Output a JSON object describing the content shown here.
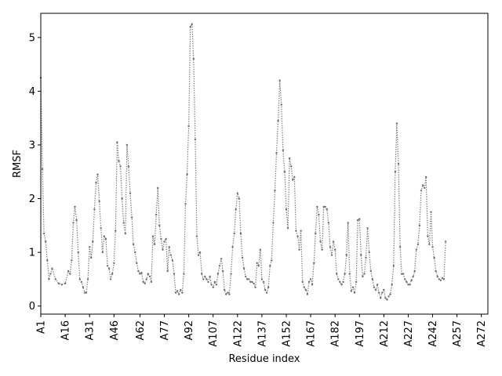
{
  "chart_data": {
    "type": "line",
    "title": "",
    "xlabel": "Residue index",
    "ylabel": "RMSF",
    "xlim": [
      1,
      276
    ],
    "ylim": [
      -0.15,
      5.45
    ],
    "grid": false,
    "legend": "none",
    "line_color": "#808080",
    "line_style": "dotted",
    "yticks": [
      0,
      1,
      2,
      3,
      4,
      5
    ],
    "ytick_labels": [
      "0",
      "1",
      "2",
      "3",
      "4",
      "5"
    ],
    "xticks": [
      1,
      16,
      31,
      46,
      62,
      77,
      92,
      107,
      122,
      137,
      152,
      167,
      182,
      197,
      212,
      227,
      242,
      257,
      272
    ],
    "xtick_labels": [
      "A1",
      "A16",
      "A31",
      "A46",
      "A62",
      "A77",
      "A92",
      "A107",
      "A122",
      "A137",
      "A152",
      "A167",
      "A182",
      "A197",
      "A212",
      "A227",
      "A242",
      "A257",
      "A272"
    ],
    "keypoints": [
      [
        1,
        4.25
      ],
      [
        2,
        2.55
      ],
      [
        3,
        1.35
      ],
      [
        4,
        1.2
      ],
      [
        5,
        0.85
      ],
      [
        6,
        0.5
      ],
      [
        7,
        0.6
      ],
      [
        8,
        0.7
      ],
      [
        10,
        0.5
      ],
      [
        12,
        0.42
      ],
      [
        14,
        0.4
      ],
      [
        16,
        0.42
      ],
      [
        18,
        0.65
      ],
      [
        19,
        0.6
      ],
      [
        20,
        0.85
      ],
      [
        21,
        1.55
      ],
      [
        22,
        1.85
      ],
      [
        23,
        1.6
      ],
      [
        24,
        1.0
      ],
      [
        25,
        0.5
      ],
      [
        26,
        0.45
      ],
      [
        27,
        0.35
      ],
      [
        28,
        0.25
      ],
      [
        29,
        0.25
      ],
      [
        30,
        0.5
      ],
      [
        31,
        1.1
      ],
      [
        32,
        0.9
      ],
      [
        33,
        1.2
      ],
      [
        34,
        1.8
      ],
      [
        35,
        2.3
      ],
      [
        36,
        2.45
      ],
      [
        37,
        1.95
      ],
      [
        38,
        1.45
      ],
      [
        39,
        1.0
      ],
      [
        40,
        1.3
      ],
      [
        41,
        1.25
      ],
      [
        42,
        0.75
      ],
      [
        43,
        0.7
      ],
      [
        44,
        0.5
      ],
      [
        45,
        0.6
      ],
      [
        46,
        0.8
      ],
      [
        47,
        1.4
      ],
      [
        48,
        3.05
      ],
      [
        49,
        2.7
      ],
      [
        50,
        2.6
      ],
      [
        51,
        2.0
      ],
      [
        52,
        1.55
      ],
      [
        53,
        1.35
      ],
      [
        54,
        3.0
      ],
      [
        55,
        2.6
      ],
      [
        56,
        2.1
      ],
      [
        57,
        1.65
      ],
      [
        58,
        1.15
      ],
      [
        59,
        1.0
      ],
      [
        60,
        0.8
      ],
      [
        61,
        0.65
      ],
      [
        62,
        0.6
      ],
      [
        63,
        0.62
      ],
      [
        64,
        0.45
      ],
      [
        65,
        0.42
      ],
      [
        66,
        0.5
      ],
      [
        67,
        0.6
      ],
      [
        68,
        0.55
      ],
      [
        69,
        0.45
      ],
      [
        70,
        1.3
      ],
      [
        71,
        1.15
      ],
      [
        72,
        1.7
      ],
      [
        73,
        2.2
      ],
      [
        74,
        1.5
      ],
      [
        75,
        1.25
      ],
      [
        76,
        1.05
      ],
      [
        77,
        1.2
      ],
      [
        78,
        1.25
      ],
      [
        79,
        0.65
      ],
      [
        80,
        1.1
      ],
      [
        81,
        0.95
      ],
      [
        82,
        0.85
      ],
      [
        83,
        0.6
      ],
      [
        84,
        0.25
      ],
      [
        85,
        0.28
      ],
      [
        86,
        0.22
      ],
      [
        87,
        0.3
      ],
      [
        88,
        0.25
      ],
      [
        89,
        0.6
      ],
      [
        90,
        1.9
      ],
      [
        91,
        2.45
      ],
      [
        92,
        3.35
      ],
      [
        93,
        5.2
      ],
      [
        94,
        5.25
      ],
      [
        95,
        4.6
      ],
      [
        96,
        3.1
      ],
      [
        97,
        1.3
      ],
      [
        98,
        0.95
      ],
      [
        99,
        1.0
      ],
      [
        100,
        0.6
      ],
      [
        101,
        0.5
      ],
      [
        102,
        0.55
      ],
      [
        103,
        0.5
      ],
      [
        104,
        0.45
      ],
      [
        105,
        0.55
      ],
      [
        106,
        0.4
      ],
      [
        107,
        0.35
      ],
      [
        108,
        0.45
      ],
      [
        109,
        0.4
      ],
      [
        110,
        0.6
      ],
      [
        111,
        0.75
      ],
      [
        112,
        0.88
      ],
      [
        113,
        0.65
      ],
      [
        114,
        0.3
      ],
      [
        115,
        0.22
      ],
      [
        116,
        0.25
      ],
      [
        117,
        0.22
      ],
      [
        118,
        0.6
      ],
      [
        119,
        1.1
      ],
      [
        120,
        1.35
      ],
      [
        121,
        1.8
      ],
      [
        122,
        2.1
      ],
      [
        123,
        2.0
      ],
      [
        124,
        1.35
      ],
      [
        125,
        0.9
      ],
      [
        126,
        0.7
      ],
      [
        127,
        0.55
      ],
      [
        128,
        0.5
      ],
      [
        129,
        0.5
      ],
      [
        130,
        0.45
      ],
      [
        131,
        0.45
      ],
      [
        132,
        0.42
      ],
      [
        133,
        0.35
      ],
      [
        134,
        0.8
      ],
      [
        135,
        0.75
      ],
      [
        136,
        1.05
      ],
      [
        137,
        0.5
      ],
      [
        138,
        0.45
      ],
      [
        139,
        0.3
      ],
      [
        140,
        0.25
      ],
      [
        141,
        0.35
      ],
      [
        142,
        0.75
      ],
      [
        143,
        0.85
      ],
      [
        144,
        1.55
      ],
      [
        145,
        2.15
      ],
      [
        146,
        2.85
      ],
      [
        147,
        3.45
      ],
      [
        148,
        4.2
      ],
      [
        149,
        3.75
      ],
      [
        150,
        2.9
      ],
      [
        151,
        2.5
      ],
      [
        152,
        1.8
      ],
      [
        153,
        1.45
      ],
      [
        154,
        2.75
      ],
      [
        155,
        2.6
      ],
      [
        156,
        2.35
      ],
      [
        157,
        2.4
      ],
      [
        158,
        1.4
      ],
      [
        159,
        1.3
      ],
      [
        160,
        1.05
      ],
      [
        161,
        1.4
      ],
      [
        162,
        0.45
      ],
      [
        163,
        0.35
      ],
      [
        164,
        0.3
      ],
      [
        165,
        0.22
      ],
      [
        166,
        0.45
      ],
      [
        167,
        0.5
      ],
      [
        168,
        0.4
      ],
      [
        169,
        0.8
      ],
      [
        170,
        1.35
      ],
      [
        171,
        1.85
      ],
      [
        172,
        1.7
      ],
      [
        173,
        1.2
      ],
      [
        174,
        1.05
      ],
      [
        175,
        1.85
      ],
      [
        176,
        1.85
      ],
      [
        177,
        1.8
      ],
      [
        178,
        1.55
      ],
      [
        179,
        1.1
      ],
      [
        180,
        0.95
      ],
      [
        181,
        1.2
      ],
      [
        182,
        1.05
      ],
      [
        183,
        0.6
      ],
      [
        184,
        0.5
      ],
      [
        185,
        0.45
      ],
      [
        186,
        0.4
      ],
      [
        187,
        0.45
      ],
      [
        188,
        0.6
      ],
      [
        189,
        0.95
      ],
      [
        190,
        1.55
      ],
      [
        191,
        0.6
      ],
      [
        192,
        0.28
      ],
      [
        193,
        0.35
      ],
      [
        194,
        0.25
      ],
      [
        195,
        0.45
      ],
      [
        196,
        1.6
      ],
      [
        197,
        1.62
      ],
      [
        198,
        0.95
      ],
      [
        199,
        0.55
      ],
      [
        200,
        0.6
      ],
      [
        201,
        0.9
      ],
      [
        202,
        1.45
      ],
      [
        203,
        1.0
      ],
      [
        204,
        0.65
      ],
      [
        205,
        0.5
      ],
      [
        206,
        0.35
      ],
      [
        207,
        0.3
      ],
      [
        208,
        0.4
      ],
      [
        209,
        0.25
      ],
      [
        210,
        0.15
      ],
      [
        211,
        0.25
      ],
      [
        212,
        0.3
      ],
      [
        213,
        0.15
      ],
      [
        214,
        0.12
      ],
      [
        215,
        0.18
      ],
      [
        216,
        0.22
      ],
      [
        217,
        0.4
      ],
      [
        218,
        0.75
      ],
      [
        219,
        2.5
      ],
      [
        220,
        3.4
      ],
      [
        221,
        2.65
      ],
      [
        222,
        1.1
      ],
      [
        223,
        0.6
      ],
      [
        224,
        0.6
      ],
      [
        225,
        0.5
      ],
      [
        226,
        0.45
      ],
      [
        227,
        0.4
      ],
      [
        228,
        0.4
      ],
      [
        229,
        0.48
      ],
      [
        230,
        0.55
      ],
      [
        231,
        0.65
      ],
      [
        232,
        1.05
      ],
      [
        233,
        1.15
      ],
      [
        234,
        1.5
      ],
      [
        235,
        2.15
      ],
      [
        236,
        2.25
      ],
      [
        237,
        2.2
      ],
      [
        238,
        2.4
      ],
      [
        239,
        1.3
      ],
      [
        240,
        1.15
      ],
      [
        241,
        1.75
      ],
      [
        242,
        1.1
      ],
      [
        243,
        0.9
      ],
      [
        244,
        0.65
      ],
      [
        245,
        0.55
      ],
      [
        246,
        0.5
      ],
      [
        247,
        0.48
      ],
      [
        248,
        0.52
      ],
      [
        249,
        0.5
      ],
      [
        250,
        1.2
      ]
    ]
  }
}
